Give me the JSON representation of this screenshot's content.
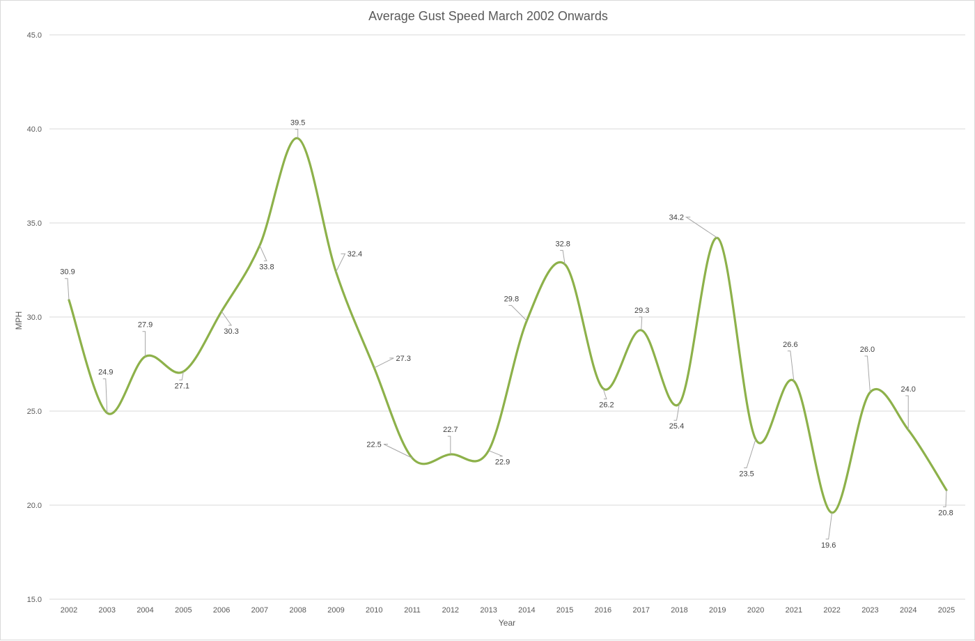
{
  "chart_data": {
    "type": "line",
    "smooth": true,
    "title": "Average Gust Speed March 2002 Onwards",
    "xlabel": "Year",
    "ylabel": "MPH",
    "ylim": [
      15,
      45
    ],
    "yticks": [
      "15.0",
      "20.0",
      "25.0",
      "30.0",
      "35.0",
      "40.0",
      "45.0"
    ],
    "grid": true,
    "legend": "none",
    "categories": [
      "2002",
      "2003",
      "2004",
      "2005",
      "2006",
      "2007",
      "2008",
      "2009",
      "2010",
      "2011",
      "2012",
      "2013",
      "2014",
      "2015",
      "2016",
      "2017",
      "2018",
      "2019",
      "2020",
      "2021",
      "2022",
      "2023",
      "2024",
      "2025"
    ],
    "series": [
      {
        "values": [
          30.9,
          24.9,
          27.9,
          27.1,
          30.3,
          33.8,
          39.5,
          32.4,
          27.3,
          22.5,
          22.7,
          22.9,
          29.8,
          32.8,
          26.2,
          29.3,
          25.4,
          34.2,
          23.5,
          26.6,
          19.6,
          26.0,
          24.0,
          20.8
        ],
        "labels": [
          "30.9",
          "24.9",
          "27.9",
          "27.1",
          "30.3",
          "33.8",
          "39.5",
          "32.4",
          "27.3",
          "22.5",
          "22.7",
          "22.9",
          "29.8",
          "32.8",
          "26.2",
          "29.3",
          "25.4",
          "34.2",
          "23.5",
          "26.6",
          "19.6",
          "26.0",
          "24.0",
          "20.8"
        ],
        "color": "#8db14a"
      }
    ]
  }
}
